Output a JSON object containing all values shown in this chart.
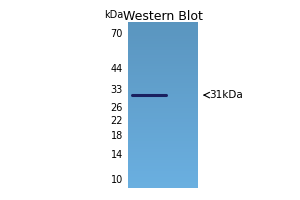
{
  "title": "Western Blot",
  "background_color": "#ffffff",
  "gel_color": "#6aafe0",
  "band_color": "#1a2060",
  "band_label": "↑31kDa",
  "kda_label": "kDa",
  "markers": [
    70,
    44,
    33,
    26,
    22,
    18,
    14,
    10
  ],
  "band_kda": 31,
  "title_fontsize": 9,
  "marker_fontsize": 7,
  "band_label_fontsize": 7.5,
  "fig_width": 3.0,
  "fig_height": 2.0,
  "dpi": 100
}
